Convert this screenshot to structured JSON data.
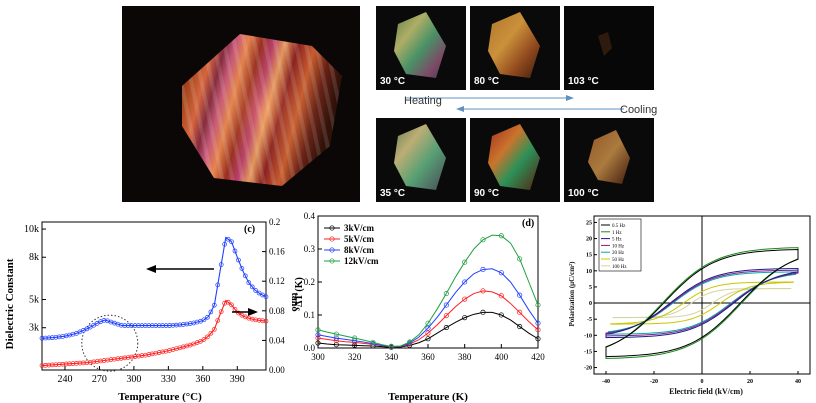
{
  "micrographs": {
    "temps_top": [
      "30 °C",
      "80 °C",
      "103 °C"
    ],
    "temps_bottom": [
      "35 °C",
      "90 °C",
      "100 °C"
    ],
    "heating_label": "Heating",
    "cooling_label": "Cooling"
  },
  "chart_data": [
    {
      "type": "line",
      "panel_label": "(c)",
      "xlabel": "Temperature (°C)",
      "ylabel_left": "Dielectric Constant",
      "ylabel_right": "tanδ",
      "x_ticks": [
        "240",
        "270",
        "300",
        "330",
        "360",
        "390"
      ],
      "y_left_ticks": [
        "3k",
        "5k",
        "8k",
        "10k"
      ],
      "y_right_ticks": [
        "0.00",
        "0.04",
        "0.08",
        "0.12",
        "0.16",
        "0.2"
      ],
      "xlim": [
        220,
        415
      ],
      "ylim_left": [
        0,
        10500
      ],
      "ylim_right": [
        0,
        0.2
      ],
      "series": [
        {
          "axis": "left",
          "color": "#1f3fff",
          "x": [
            220,
            230,
            240,
            250,
            260,
            270,
            275,
            280,
            290,
            300,
            310,
            320,
            330,
            340,
            350,
            360,
            365,
            370,
            375,
            380,
            385,
            390,
            395,
            400,
            405,
            410,
            415
          ],
          "y": [
            2250,
            2300,
            2400,
            2600,
            2950,
            3400,
            3550,
            3400,
            3150,
            3150,
            3150,
            3150,
            3150,
            3200,
            3300,
            3500,
            3800,
            4600,
            7000,
            9400,
            9100,
            8000,
            7000,
            6200,
            5700,
            5400,
            5200
          ]
        },
        {
          "axis": "right",
          "color": "#ff2020",
          "x": [
            220,
            230,
            240,
            250,
            260,
            270,
            280,
            290,
            300,
            310,
            320,
            330,
            340,
            350,
            360,
            365,
            370,
            375,
            380,
            385,
            390,
            395,
            400,
            405,
            410,
            415
          ],
          "y": [
            0.006,
            0.007,
            0.008,
            0.009,
            0.01,
            0.012,
            0.014,
            0.016,
            0.018,
            0.02,
            0.023,
            0.026,
            0.03,
            0.034,
            0.04,
            0.046,
            0.055,
            0.075,
            0.094,
            0.088,
            0.078,
            0.073,
            0.07,
            0.068,
            0.067,
            0.066
          ]
        }
      ]
    },
    {
      "type": "line",
      "panel_label": "(d)",
      "xlabel": "Temperature (K)",
      "ylabel": "ΔT (K)",
      "x_ticks": [
        "300",
        "320",
        "340",
        "360",
        "380",
        "400",
        "420"
      ],
      "y_ticks": [
        "0.0",
        "0.1",
        "0.2",
        "0.3",
        "0.4"
      ],
      "xlim": [
        300,
        420
      ],
      "ylim": [
        0,
        0.4
      ],
      "legend_position": "top-left",
      "series": [
        {
          "name": "3kV/cm",
          "color": "#000000",
          "x": [
            300,
            305,
            310,
            315,
            320,
            325,
            330,
            335,
            340,
            345,
            350,
            355,
            360,
            365,
            370,
            375,
            380,
            385,
            390,
            395,
            400,
            405,
            410,
            415,
            420
          ],
          "y": [
            0.015,
            0.012,
            0.01,
            0.009,
            0.008,
            0.007,
            0.006,
            0.004,
            0.002,
            0.003,
            0.008,
            0.016,
            0.028,
            0.045,
            0.062,
            0.078,
            0.092,
            0.102,
            0.108,
            0.108,
            0.1,
            0.085,
            0.065,
            0.045,
            0.028
          ]
        },
        {
          "name": "5kV/cm",
          "color": "#ff2020",
          "x": [
            300,
            305,
            310,
            315,
            320,
            325,
            330,
            335,
            340,
            345,
            350,
            355,
            360,
            365,
            370,
            375,
            380,
            385,
            390,
            395,
            400,
            405,
            410,
            415,
            420
          ],
          "y": [
            0.03,
            0.026,
            0.022,
            0.019,
            0.017,
            0.014,
            0.011,
            0.007,
            0.003,
            0.004,
            0.012,
            0.025,
            0.045,
            0.07,
            0.098,
            0.125,
            0.148,
            0.165,
            0.173,
            0.17,
            0.158,
            0.135,
            0.108,
            0.08,
            0.055
          ]
        },
        {
          "name": "8kV/cm",
          "color": "#2040ff",
          "x": [
            300,
            305,
            310,
            315,
            320,
            325,
            330,
            335,
            340,
            345,
            350,
            355,
            360,
            365,
            370,
            375,
            380,
            385,
            390,
            395,
            400,
            405,
            410,
            415,
            420
          ],
          "y": [
            0.04,
            0.035,
            0.03,
            0.026,
            0.022,
            0.018,
            0.013,
            0.008,
            0.004,
            0.005,
            0.015,
            0.033,
            0.06,
            0.093,
            0.13,
            0.168,
            0.2,
            0.225,
            0.238,
            0.24,
            0.228,
            0.2,
            0.16,
            0.115,
            0.075
          ]
        },
        {
          "name": "12kV/cm",
          "color": "#20a040",
          "x": [
            300,
            305,
            310,
            315,
            320,
            325,
            330,
            335,
            340,
            345,
            350,
            355,
            360,
            365,
            370,
            375,
            380,
            385,
            390,
            395,
            400,
            405,
            410,
            415,
            420
          ],
          "y": [
            0.055,
            0.048,
            0.042,
            0.036,
            0.03,
            0.024,
            0.017,
            0.01,
            0.005,
            0.006,
            0.018,
            0.04,
            0.075,
            0.118,
            0.165,
            0.215,
            0.26,
            0.3,
            0.328,
            0.342,
            0.34,
            0.318,
            0.27,
            0.2,
            0.13
          ]
        }
      ]
    },
    {
      "type": "line",
      "xlabel": "Electric field (kV/cm)",
      "ylabel": "Polarization (μC/cm²)",
      "x_ticks": [
        "-40",
        "-20",
        "0",
        "20",
        "40"
      ],
      "y_ticks": [
        "-20",
        "-15",
        "-10",
        "-5",
        "0",
        "5",
        "10",
        "15",
        "20",
        "25"
      ],
      "xlim": [
        -45,
        45
      ],
      "ylim": [
        -22,
        27
      ],
      "legend_position": "top-left",
      "legend_entries": [
        "0.5 Hz",
        "1 Hz",
        "5 Hz",
        "10 Hz",
        "20 Hz",
        "50 Hz",
        "100 Hz"
      ],
      "loops": [
        {
          "name": "0.5 Hz",
          "color": "#000000",
          "Ps": 16,
          "Pr": 12,
          "Ec": 29,
          "Emax": 40
        },
        {
          "name": "1 Hz",
          "color": "#1a8a1a",
          "Ps": 16.5,
          "Pr": 12.5,
          "Ec": 30,
          "Emax": 40
        },
        {
          "name": "5 Hz",
          "color": "#1a1a8a",
          "Ps": 10.5,
          "Pr": 7,
          "Ec": 24,
          "Emax": 40
        },
        {
          "name": "10 Hz",
          "color": "#8a1a8a",
          "Ps": 10,
          "Pr": 6.5,
          "Ec": 23,
          "Emax": 40
        },
        {
          "name": "20 Hz",
          "color": "#00aaaa",
          "Ps": 9.5,
          "Pr": 6,
          "Ec": 22,
          "Emax": 39
        },
        {
          "name": "50 Hz",
          "color": "#c8c800",
          "Ps": 6.5,
          "Pr": 3,
          "Ec": 14,
          "Emax": 38
        },
        {
          "name": "100 Hz",
          "color": "#d4d4a0",
          "Ps": 4.5,
          "Pr": 1.5,
          "Ec": 8,
          "Emax": 37
        }
      ]
    }
  ]
}
